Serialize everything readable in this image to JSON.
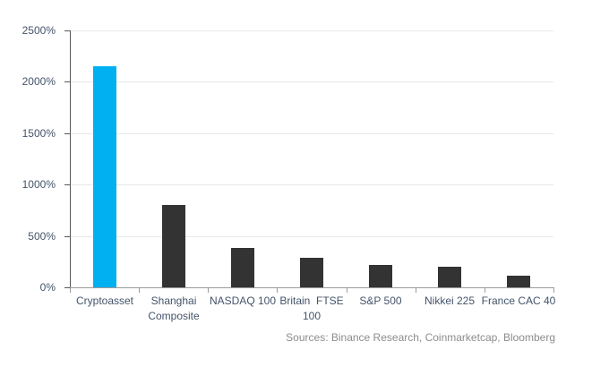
{
  "chart_data": {
    "type": "bar",
    "title": "",
    "xlabel": "",
    "ylabel": "",
    "categories": [
      "Cryptoasset",
      "Shanghai Composite",
      "NASDAQ 100",
      "Britain FTSE 100",
      "S&P 500",
      "Nikkei 225",
      "France CAC 40"
    ],
    "values": [
      2150,
      800,
      380,
      285,
      220,
      200,
      110
    ],
    "x_label_lines": [
      [
        "Cryptoasset"
      ],
      [
        "Shanghai",
        "Composite"
      ],
      [
        "NASDAQ 100"
      ],
      [
        "Britain  FTSE",
        "100"
      ],
      [
        "S&P 500"
      ],
      [
        "Nikkei 225"
      ],
      [
        "France CAC 40"
      ]
    ],
    "bar_colors": [
      "#00b0f0",
      "#333333",
      "#333333",
      "#333333",
      "#333333",
      "#333333",
      "#333333"
    ],
    "ylim": [
      0,
      2500
    ],
    "ytick_step": 500,
    "ytick_suffix": "%",
    "grid": true,
    "legend": "none"
  },
  "footer": {
    "source_text": "Sources: Binance Research, Coinmarketcap, Bloomberg"
  },
  "colors": {
    "highlight": "#00b0f0",
    "bar_default": "#333333",
    "label_text": "#44546a",
    "source_text": "#8c8c8c",
    "gridline": "#e8e8e8",
    "axis_y": "#595959",
    "axis_x": "#9b9b9b",
    "background": "#ffffff"
  }
}
